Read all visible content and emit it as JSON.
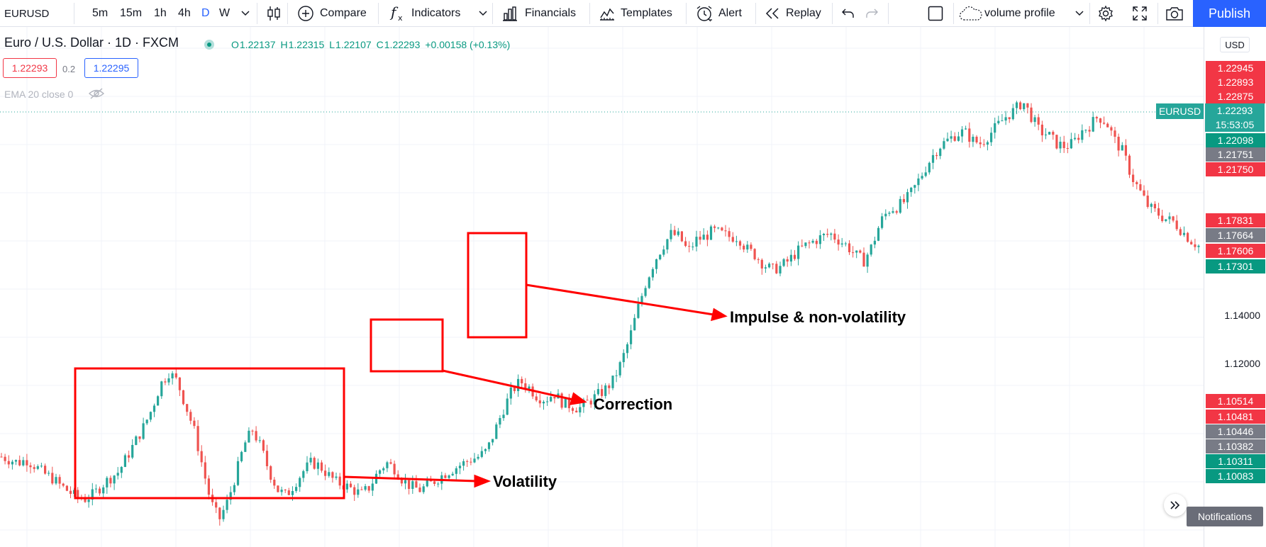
{
  "toolbar": {
    "symbol": "EURUSD",
    "intervals": [
      "5m",
      "15m",
      "1h",
      "4h",
      "D",
      "W"
    ],
    "selected_interval": "D",
    "compare": "Compare",
    "indicators": "Indicators",
    "financials": "Financials",
    "templates": "Templates",
    "alert": "Alert",
    "replay": "Replay",
    "layout_name": "volume profile",
    "publish": "Publish",
    "icons": [
      "chevron-down-icon",
      "candles-icon",
      "plus-circle-icon",
      "fx-icon",
      "bar-chart-icon",
      "templates-icon",
      "alarm-clock-icon",
      "replay-icon",
      "undo-icon",
      "redo-icon",
      "square-icon",
      "cloud-icon",
      "gear-icon",
      "fullscreen-icon",
      "camera-icon"
    ]
  },
  "legend": {
    "title": "Euro / U.S. Dollar · 1D · FXCM",
    "ohlc": [
      {
        "k": "O",
        "v": "1.22137"
      },
      {
        "k": "H",
        "v": "1.22315"
      },
      {
        "k": "L",
        "v": "1.22107"
      },
      {
        "k": "C",
        "v": "1.22293"
      }
    ],
    "change": "+0.00158 (+0.13%)",
    "sell": "1.22293",
    "spread": "0.2",
    "buy": "1.22295",
    "ema": "EMA 20 close 0"
  },
  "price_axis": {
    "currency": "USD",
    "symbol_tag": "EURUSD",
    "last_price": "1.22293",
    "countdown": "15:53:05",
    "ticks": [
      "1.14000",
      "1.12000"
    ],
    "labels": [
      {
        "text": "1.22945",
        "color": "#f23645"
      },
      {
        "text": "1.22893",
        "color": "#f23645"
      },
      {
        "text": "1.22875",
        "color": "#f23645"
      },
      {
        "text": "1.22098",
        "color": "#089981"
      },
      {
        "text": "1.21751",
        "color": "#787b86"
      },
      {
        "text": "1.21750",
        "color": "#f23645"
      },
      {
        "text": "1.17831",
        "color": "#f23645"
      },
      {
        "text": "1.17664",
        "color": "#787b86"
      },
      {
        "text": "1.17606",
        "color": "#f23645"
      },
      {
        "text": "1.17301",
        "color": "#089981"
      },
      {
        "text": "1.10514",
        "color": "#f23645"
      },
      {
        "text": "1.10481",
        "color": "#f23645"
      },
      {
        "text": "1.10446",
        "color": "#787b86"
      },
      {
        "text": "1.10382",
        "color": "#787b86"
      },
      {
        "text": "1.10311",
        "color": "#089981"
      },
      {
        "text": "1.10083",
        "color": "#089981"
      }
    ]
  },
  "annotations": {
    "volatility": "Volatility",
    "correction": "Correction",
    "impulse": "Impulse & non-volatility"
  },
  "notifications": "Notifications",
  "colors": {
    "up": "#26a69a",
    "down": "#ef5350",
    "annotation": "#ff0000",
    "accent": "#2962ff"
  },
  "chart_data": {
    "type": "candlestick",
    "ylim": [
      1.085,
      1.245
    ],
    "path": [
      1.107,
      1.106,
      1.105,
      1.106,
      1.104,
      1.1015,
      1.1,
      1.0975,
      1.0955,
      1.0935,
      1.093,
      1.0945,
      1.0975,
      1.1,
      1.102,
      1.107,
      1.112,
      1.117,
      1.123,
      1.131,
      1.135,
      1.132,
      1.124,
      1.116,
      1.104,
      1.092,
      1.086,
      1.092,
      1.101,
      1.111,
      1.116,
      1.11,
      1.102,
      1.096,
      1.094,
      1.098,
      1.102,
      1.105,
      1.104,
      1.101,
      1.0985,
      1.0975,
      1.096,
      1.0945,
      1.097,
      1.102,
      1.105,
      1.103,
      1.099,
      1.097,
      1.096,
      1.0975,
      1.0995,
      1.1015,
      1.103,
      1.1045,
      1.106,
      1.107,
      1.109,
      1.116,
      1.123,
      1.129,
      1.132,
      1.13,
      1.127,
      1.126,
      1.128,
      1.125,
      1.124,
      1.123,
      1.125,
      1.127,
      1.129,
      1.132,
      1.138,
      1.146,
      1.156,
      1.165,
      1.172,
      1.177,
      1.181,
      1.18,
      1.175,
      1.179,
      1.18,
      1.182,
      1.181,
      1.18,
      1.18,
      1.176,
      1.174,
      1.171,
      1.169,
      1.17,
      1.172,
      1.175,
      1.177,
      1.1785,
      1.18,
      1.181,
      1.179,
      1.177,
      1.174,
      1.172,
      1.177,
      1.185,
      1.189,
      1.19,
      1.192,
      1.196,
      1.201,
      1.206,
      1.21,
      1.212,
      1.214,
      1.215,
      1.212,
      1.211,
      1.214,
      1.217,
      1.22,
      1.222,
      1.225,
      1.22,
      1.215,
      1.214,
      1.211,
      1.21,
      1.211,
      1.215,
      1.217,
      1.22,
      1.218,
      1.212,
      1.208,
      1.2,
      1.195,
      1.19,
      1.188,
      1.186,
      1.185,
      1.182,
      1.179,
      1.177
    ]
  }
}
